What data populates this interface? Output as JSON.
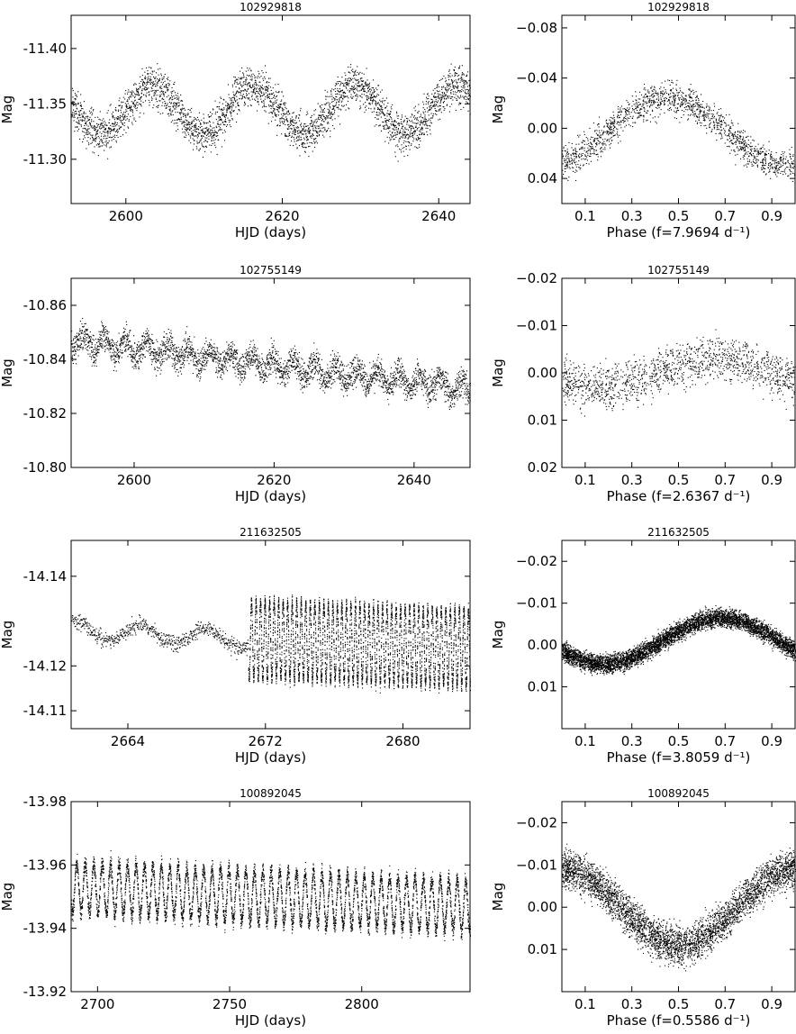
{
  "colors": {
    "axis": "#000000",
    "points": "#000000",
    "background": "#ffffff"
  },
  "chart_data": [
    {
      "type": "scatter",
      "title": "102929818",
      "xlabel": "HJD (days)",
      "ylabel": "Mag",
      "xlim": [
        2593,
        2644
      ],
      "ylim": [
        -11.26,
        -11.43
      ],
      "xticks": [
        2600,
        2620,
        2640
      ],
      "xtick_labels": [
        "2600",
        "2620",
        "2640"
      ],
      "yticks": [
        -11.4,
        -11.35,
        -11.3
      ],
      "ytick_labels": [
        "-11.40",
        "-11.35",
        "-11.30"
      ],
      "series": [
        {
          "trend": [
            [
              2593,
              -11.345
            ],
            [
              2644,
              -11.345
            ]
          ],
          "oscillation": {
            "period_days": 13,
            "amplitude": 0.022
          },
          "noise": 0.018,
          "n_points": 3200,
          "sampling": "continuous"
        }
      ]
    },
    {
      "type": "scatter",
      "title": "102929818",
      "xlabel": "Phase (f=7.9694  d⁻¹)",
      "ylabel": "Mag",
      "xlim": [
        0,
        1
      ],
      "ylim": [
        0.06,
        -0.09
      ],
      "xticks": [
        0.1,
        0.3,
        0.5,
        0.7,
        0.9
      ],
      "xtick_labels": [
        "0.1",
        "0.3",
        "0.5",
        "0.7",
        "0.9"
      ],
      "yticks": [
        -0.08,
        -0.04,
        0.0,
        0.04
      ],
      "ytick_labels": [
        "−0.08",
        "−0.04",
        "0.00",
        "0.04"
      ],
      "series": [
        {
          "phase_curve": {
            "offset": 0.002,
            "amplitude": 0.026,
            "max_phase": 0.45
          },
          "noise": 0.013,
          "n_points": 1500
        }
      ]
    },
    {
      "type": "scatter",
      "title": "102755149",
      "xlabel": "HJD (days)",
      "ylabel": "Mag",
      "xlim": [
        2591,
        2648
      ],
      "ylim": [
        -10.8,
        -10.87
      ],
      "xticks": [
        2600,
        2620,
        2640
      ],
      "xtick_labels": [
        "2600",
        "2620",
        "2640"
      ],
      "yticks": [
        -10.86,
        -10.84,
        -10.82,
        -10.8
      ],
      "ytick_labels": [
        "-10.86",
        "-10.84",
        "-10.82",
        "-10.80"
      ],
      "series": [
        {
          "trend": [
            [
              2591,
              -10.847
            ],
            [
              2648,
              -10.829
            ]
          ],
          "oscillation": {
            "period_days": 3,
            "amplitude": 0.003
          },
          "noise": 0.0055,
          "n_points": 3200,
          "sampling": "continuous"
        }
      ]
    },
    {
      "type": "scatter",
      "title": "102755149",
      "xlabel": "Phase (f=2.6367  d⁻¹)",
      "ylabel": "Mag",
      "xlim": [
        0,
        1
      ],
      "ylim": [
        0.02,
        -0.02
      ],
      "xticks": [
        0.1,
        0.3,
        0.5,
        0.7,
        0.9
      ],
      "xtick_labels": [
        "0.1",
        "0.3",
        "0.5",
        "0.7",
        "0.9"
      ],
      "yticks": [
        -0.02,
        -0.01,
        0.0,
        0.01,
        0.02
      ],
      "ytick_labels": [
        "−0.02",
        "−0.01",
        "0.00",
        "0.01",
        "0.02"
      ],
      "series": [
        {
          "phase_curve": {
            "offset": 0.0,
            "amplitude": 0.003,
            "max_phase": 0.65
          },
          "noise": 0.0045,
          "n_points": 1400
        }
      ]
    },
    {
      "type": "scatter",
      "title": "211632505",
      "xlabel": "HJD (days)",
      "ylabel": "Mag",
      "xlim": [
        2660.7,
        2683.9
      ],
      "ylim": [
        -14.106,
        -14.148
      ],
      "xticks": [
        2664,
        2672,
        2680
      ],
      "xtick_labels": [
        "2664",
        "2672",
        "2680"
      ],
      "yticks": [
        -14.14,
        -14.12,
        -14.11
      ],
      "ytick_labels": [
        "-14.14",
        "-14.12",
        "-14.11"
      ],
      "series": [
        {
          "trend": [
            [
              2660.7,
              -14.128
            ],
            [
              2671,
              -14.126
            ]
          ],
          "oscillation": {
            "period_days": 3.8,
            "amplitude": 0.002
          },
          "noise": 0.0018,
          "n_points": 700,
          "x_range": [
            2660.7,
            2671
          ],
          "sampling": "continuous"
        },
        {
          "trend": [
            [
              2671,
              -14.126
            ],
            [
              2683.9,
              -14.124
            ]
          ],
          "oscillation": {
            "period_days": 0.2628,
            "amplitude": 0.0085
          },
          "noise": 0.0015,
          "n_points": 5200,
          "x_range": [
            2671,
            2683.9
          ],
          "sampling": "continuous"
        }
      ]
    },
    {
      "type": "scatter",
      "title": "211632505",
      "xlabel": "Phase (f=3.8059  d⁻¹)",
      "ylabel": "Mag",
      "xlim": [
        0,
        1
      ],
      "ylim": [
        0.02,
        -0.025
      ],
      "xticks": [
        0.1,
        0.3,
        0.5,
        0.7,
        0.9
      ],
      "xtick_labels": [
        "0.1",
        "0.3",
        "0.5",
        "0.7",
        "0.9"
      ],
      "yticks": [
        -0.02,
        -0.01,
        0.0,
        0.01
      ],
      "ytick_labels": [
        "−0.02",
        "−0.01",
        "0.00",
        "0.01"
      ],
      "series": [
        {
          "phase_curve": {
            "offset": -0.001,
            "amplitude": 0.0055,
            "max_phase": 0.68
          },
          "noise": 0.0022,
          "n_points": 5500
        }
      ]
    },
    {
      "type": "scatter",
      "title": "100892045",
      "xlabel": "HJD (days)",
      "ylabel": "Mag",
      "xlim": [
        2690,
        2841
      ],
      "ylim": [
        -13.92,
        -13.98
      ],
      "xticks": [
        2700,
        2750,
        2800
      ],
      "xtick_labels": [
        "2700",
        "2750",
        "2800"
      ],
      "yticks": [
        -13.98,
        -13.96,
        -13.94,
        -13.92
      ],
      "ytick_labels": [
        "-13.98",
        "-13.96",
        "-13.94",
        "-13.92"
      ],
      "series": [
        {
          "trend": [
            [
              2690,
              -13.953
            ],
            [
              2841,
              -13.947
            ]
          ],
          "oscillation": {
            "period_days": 3.2,
            "amplitude": 0.008
          },
          "noise": 0.0028,
          "n_points": 6000,
          "sampling": "continuous"
        }
      ]
    },
    {
      "type": "scatter",
      "title": "100892045",
      "xlabel": "Phase (f=0.5586  d⁻¹)",
      "ylabel": "Mag",
      "xlim": [
        0,
        1
      ],
      "ylim": [
        0.02,
        -0.025
      ],
      "xticks": [
        0.1,
        0.3,
        0.5,
        0.7,
        0.9
      ],
      "xtick_labels": [
        "0.1",
        "0.3",
        "0.5",
        "0.7",
        "0.9"
      ],
      "yticks": [
        -0.02,
        -0.01,
        0.0,
        0.01
      ],
      "ytick_labels": [
        "−0.02",
        "−0.01",
        "0.00",
        "0.01"
      ],
      "series": [
        {
          "phase_curve": {
            "offset": 0.0,
            "amplitude": 0.009,
            "max_phase": 0.0
          },
          "noise": 0.0045,
          "n_points": 4000
        }
      ]
    }
  ]
}
